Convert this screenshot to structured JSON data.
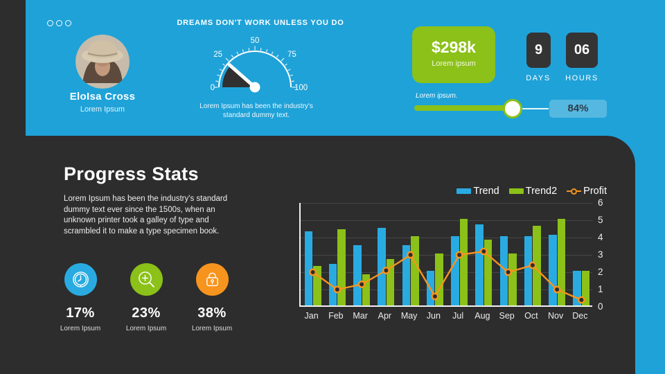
{
  "top": {
    "profile": {
      "name": "EloIsa Cross",
      "role": "Lorem Ipsum"
    },
    "quote": "DREAMS DON'T WORK UNLESS YOU DO",
    "gauge": {
      "value": 23,
      "min": 0,
      "max": 100,
      "tick_labels": [
        "0",
        "25",
        "50",
        "75",
        "100"
      ],
      "caption": "Lorem Ipsum has been the industry's standard dummy text."
    },
    "kpi": {
      "amount": "$298k",
      "label": "Lorem ipsum"
    },
    "countdown": {
      "days_value": "9",
      "days_label": "DAYS",
      "hours_value": "06",
      "hours_label": "HOURS"
    },
    "slider": {
      "label": "Lorem ipsum.",
      "value_label": "84%",
      "percent": 84
    }
  },
  "main": {
    "title": "Progress Stats",
    "body": "Lorem Ipsum has been the industry's standard dummy text ever since the 1500s, when an unknown printer took a galley of type and scrambled it to make a type specimen book.",
    "stats": [
      {
        "icon": "clock-icon",
        "color": "#29abe2",
        "percent": "17%",
        "label": "Lorem Ipsum"
      },
      {
        "icon": "zoom-in-icon",
        "color": "#8bc118",
        "percent": "23%",
        "label": "Lorem Ipsum"
      },
      {
        "icon": "lock-icon",
        "color": "#f7941e",
        "percent": "38%",
        "label": "Lorem Ipsum"
      }
    ]
  },
  "chart_data": {
    "type": "bar",
    "categories": [
      "Jan",
      "Feb",
      "Mar",
      "Apr",
      "May",
      "Jun",
      "Jul",
      "Aug",
      "Sep",
      "Oct",
      "Nov",
      "Dec"
    ],
    "series": [
      {
        "name": "Trend",
        "type": "bar",
        "color": "#29abe2",
        "values": [
          4.3,
          2.4,
          3.5,
          4.5,
          3.5,
          2.0,
          4.0,
          4.7,
          4.0,
          4.0,
          4.1,
          2.0
        ]
      },
      {
        "name": "Trend2",
        "type": "bar",
        "color": "#8bc118",
        "values": [
          2.3,
          4.4,
          1.8,
          2.7,
          4.0,
          3.0,
          5.0,
          3.8,
          3.0,
          4.6,
          5.0,
          2.0
        ]
      },
      {
        "name": "Profit",
        "type": "line",
        "color": "#f7941e",
        "values": [
          2.0,
          1.0,
          1.3,
          2.1,
          3.0,
          0.6,
          3.0,
          3.2,
          2.0,
          2.4,
          1.0,
          0.4
        ]
      }
    ],
    "title": "",
    "xlabel": "",
    "ylabel": "",
    "ylim": [
      0,
      6
    ],
    "yticks": [
      0,
      1,
      2,
      3,
      4,
      5,
      6
    ],
    "ytick_side": "right",
    "grid": true,
    "legend_position": "top-right"
  },
  "colors": {
    "background": "#2d2d2d",
    "accent_blue": "#1fa2d8",
    "bar_blue": "#29abe2",
    "accent_green": "#8bc118",
    "accent_orange": "#f7941e",
    "flip_box": "#343434",
    "slider_value_bg": "#55b8e0"
  }
}
